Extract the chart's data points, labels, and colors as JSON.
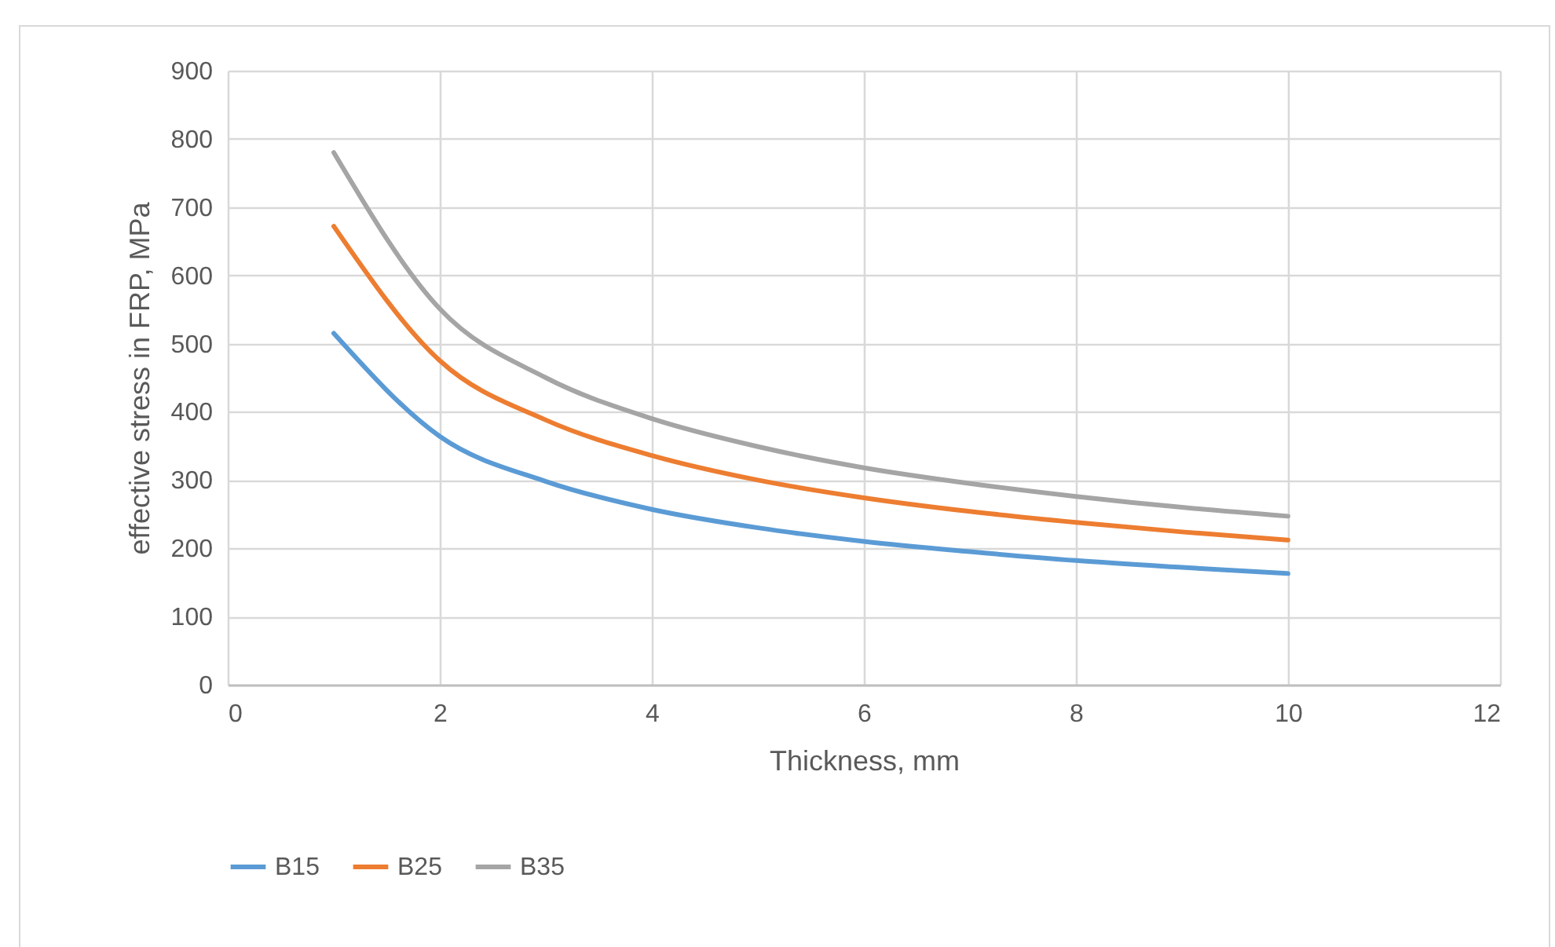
{
  "chart_data": {
    "type": "line",
    "xlabel": "Thickness, mm",
    "ylabel": "effective stress in FRP, MPa",
    "x": [
      1,
      2,
      3,
      4,
      5,
      6,
      7,
      8,
      9,
      10
    ],
    "series": [
      {
        "name": "B15",
        "color": "#5b9bd5",
        "values": [
          515,
          364,
          298,
          257,
          230,
          210,
          195,
          182,
          172,
          163
        ]
      },
      {
        "name": "B25",
        "color": "#ed7d31",
        "values": [
          672,
          475,
          388,
          336,
          300,
          274,
          254,
          238,
          224,
          212
        ]
      },
      {
        "name": "B35",
        "color": "#a5a5a5",
        "values": [
          780,
          551,
          450,
          390,
          349,
          318,
          295,
          276,
          260,
          247
        ]
      }
    ],
    "xlim": [
      0,
      12
    ],
    "xticks": [
      0,
      2,
      4,
      6,
      8,
      10,
      12
    ],
    "ylim": [
      0,
      900
    ],
    "yticks": [
      0,
      100,
      200,
      300,
      400,
      500,
      600,
      700,
      800,
      900
    ],
    "grid": true,
    "legend": "bottom",
    "marker": "none",
    "line_style": "solid"
  }
}
